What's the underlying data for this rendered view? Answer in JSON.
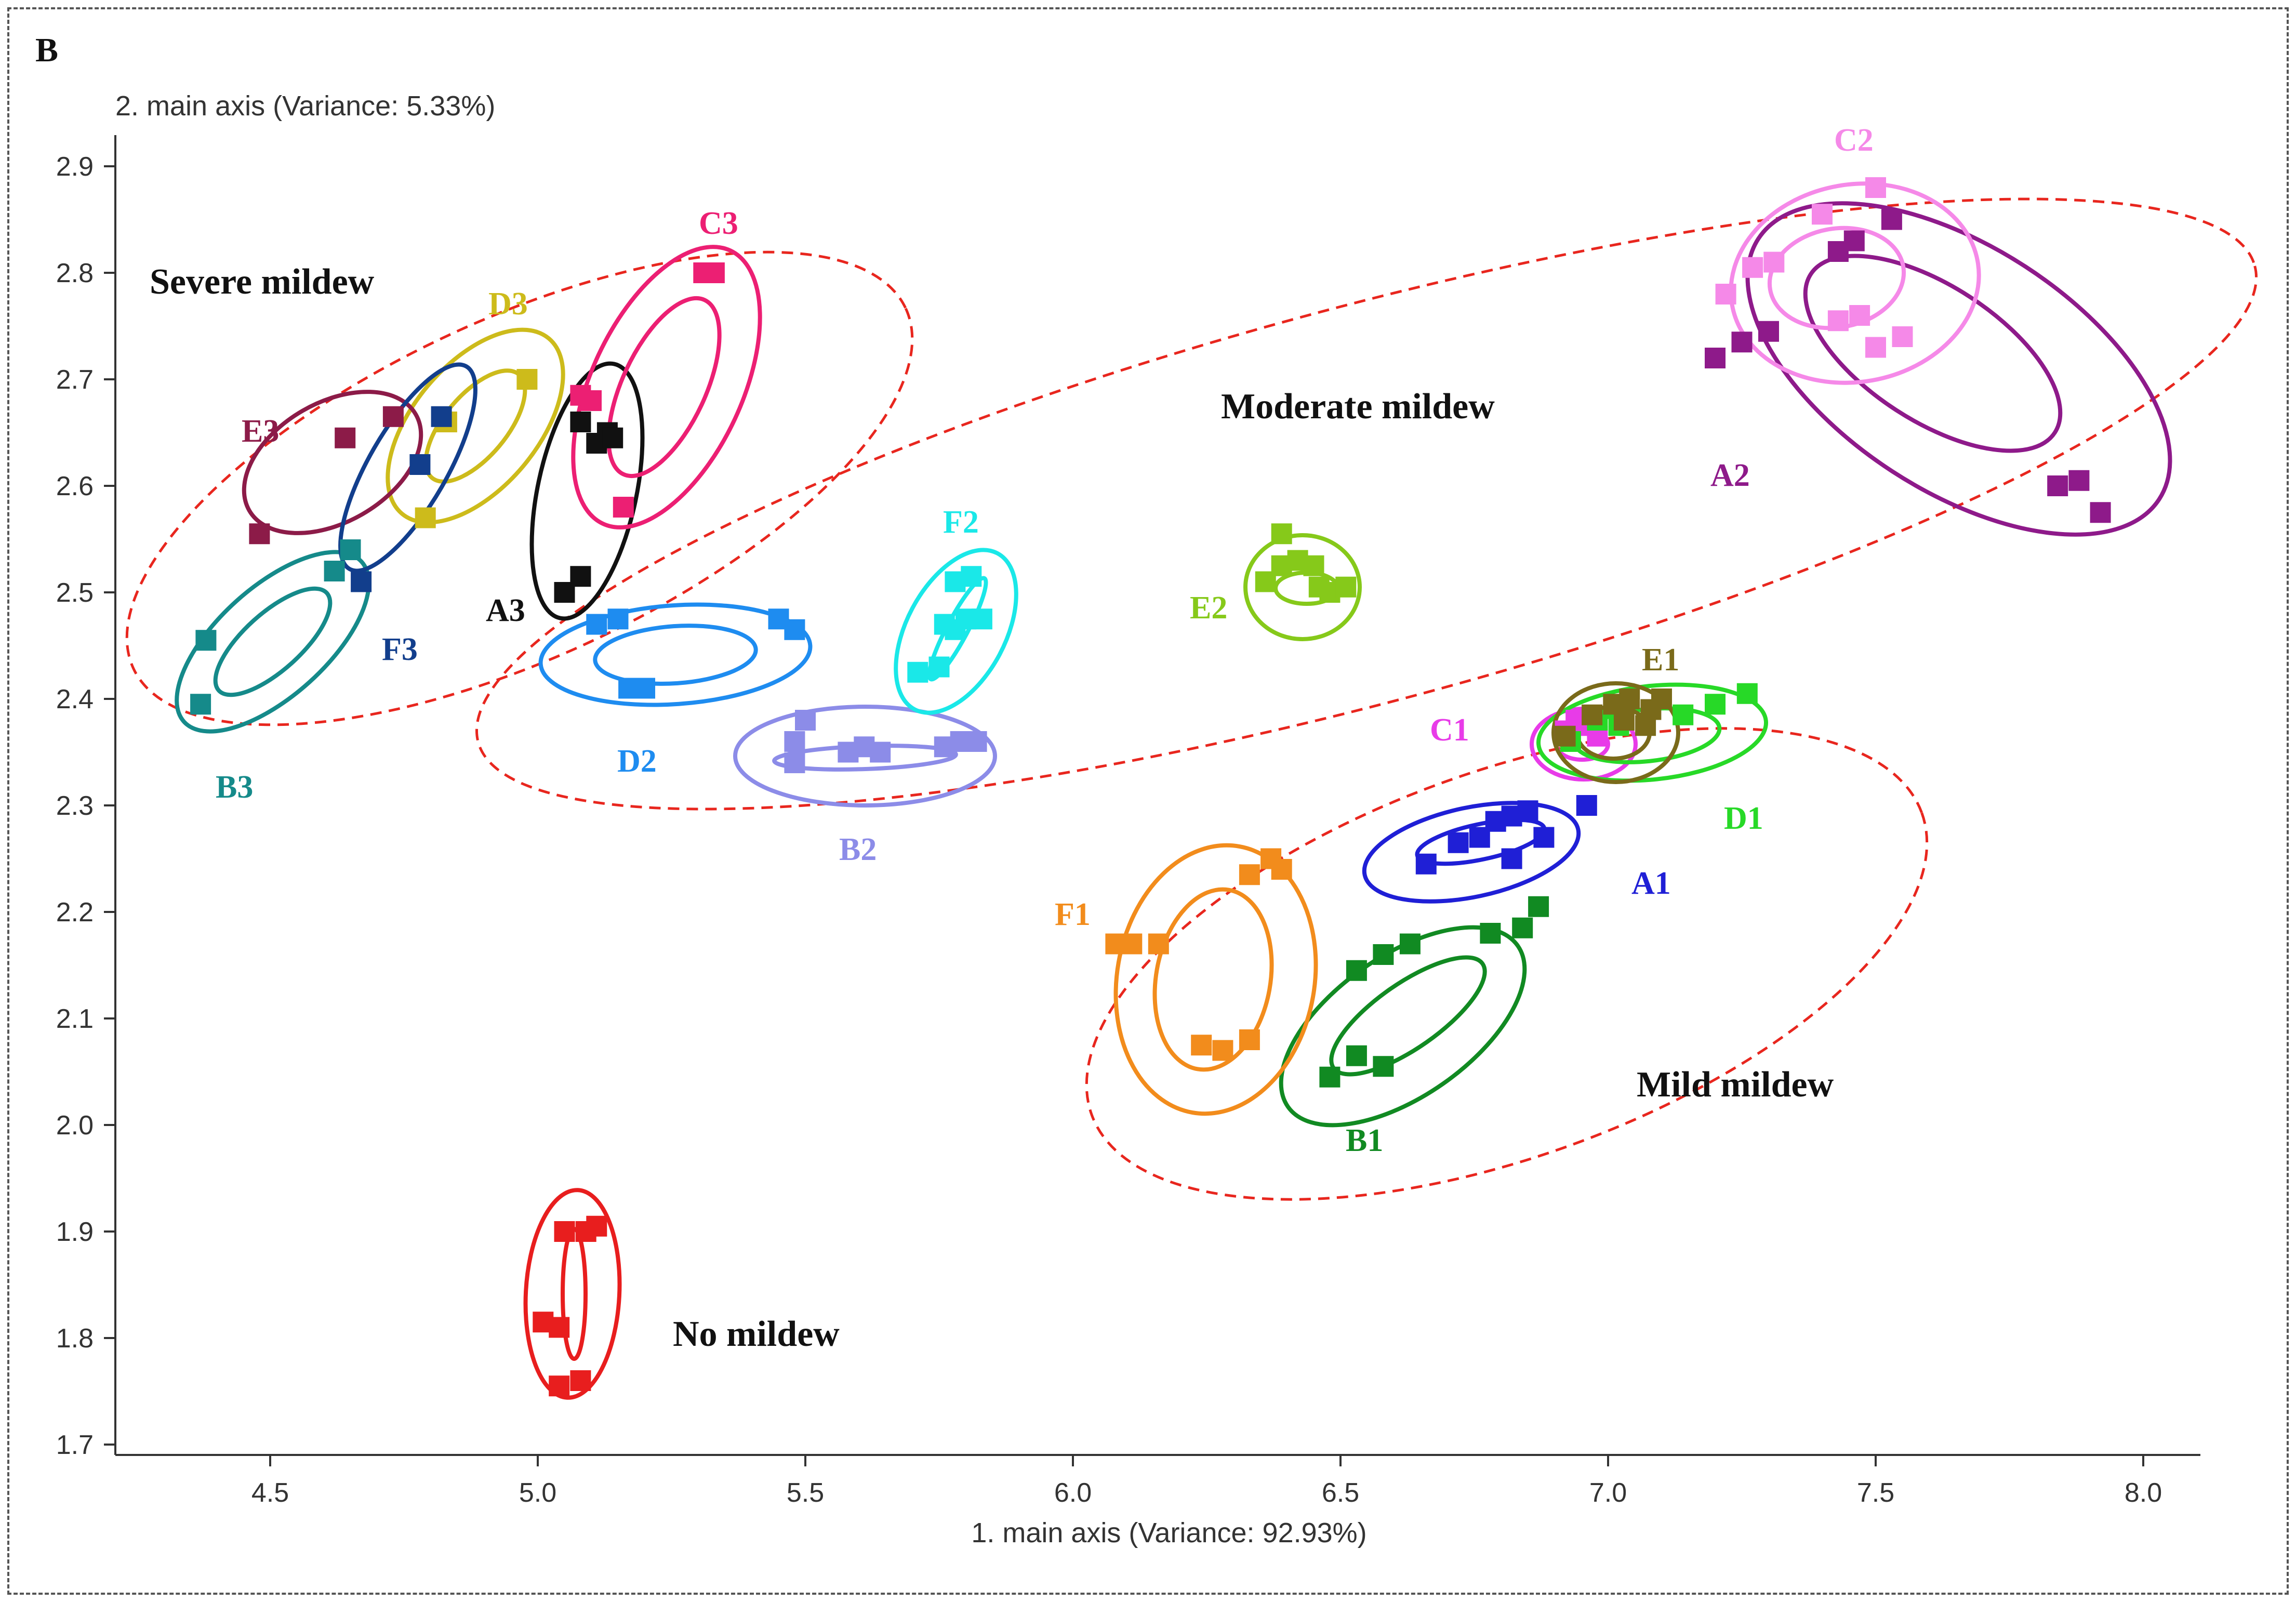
{
  "panel_label": "B",
  "chart_data": {
    "type": "scatter",
    "title": "",
    "xlabel": "1. main axis (Variance: 92.93%)",
    "ylabel": "2. main axis (Variance: 5.33%)",
    "xlim": [
      4.2,
      8.1
    ],
    "ylim": [
      1.69,
      2.96
    ],
    "x_ticks": [
      "4.5",
      "5.0",
      "5.5",
      "6.0",
      "6.5",
      "7.0",
      "7.5",
      "8.0"
    ],
    "y_ticks": [
      "1.7",
      "1.8",
      "1.9",
      "2.0",
      "2.1",
      "2.2",
      "2.3",
      "2.4",
      "2.5",
      "2.6",
      "2.7",
      "2.8",
      "2.9"
    ],
    "regions": [
      {
        "label": "Severe mildew",
        "color": "#e8261e"
      },
      {
        "label": "Moderate mildew",
        "color": "#e8261e"
      },
      {
        "label": "Mild mildew",
        "color": "#e8261e"
      },
      {
        "label": "No mildew",
        "color": "#e8261e"
      }
    ],
    "series": [
      {
        "name": "A1",
        "color": "#1f1fd6",
        "points": [
          [
            6.66,
            2.245
          ],
          [
            6.72,
            2.265
          ],
          [
            6.76,
            2.27
          ],
          [
            6.79,
            2.285
          ],
          [
            6.82,
            2.29
          ],
          [
            6.85,
            2.295
          ],
          [
            6.88,
            2.27
          ],
          [
            6.82,
            2.25
          ],
          [
            6.96,
            2.3
          ]
        ]
      },
      {
        "name": "B1",
        "color": "#118a22",
        "points": [
          [
            6.48,
            2.045
          ],
          [
            6.53,
            2.065
          ],
          [
            6.58,
            2.055
          ],
          [
            6.53,
            2.145
          ],
          [
            6.58,
            2.16
          ],
          [
            6.63,
            2.17
          ],
          [
            6.78,
            2.18
          ],
          [
            6.84,
            2.185
          ],
          [
            6.87,
            2.205
          ]
        ]
      },
      {
        "name": "C1",
        "color": "#e83be8",
        "points": [
          [
            6.92,
            2.37
          ],
          [
            6.95,
            2.375
          ],
          [
            6.98,
            2.365
          ],
          [
            6.94,
            2.38
          ]
        ]
      },
      {
        "name": "D1",
        "color": "#27d927",
        "points": [
          [
            6.93,
            2.36
          ],
          [
            7.02,
            2.375
          ],
          [
            7.14,
            2.385
          ],
          [
            7.2,
            2.395
          ],
          [
            7.26,
            2.405
          ],
          [
            6.98,
            2.38
          ]
        ]
      },
      {
        "name": "E1",
        "color": "#7a6a1a",
        "points": [
          [
            6.92,
            2.365
          ],
          [
            6.97,
            2.385
          ],
          [
            7.01,
            2.395
          ],
          [
            7.04,
            2.4
          ],
          [
            7.08,
            2.39
          ],
          [
            7.1,
            2.4
          ],
          [
            7.03,
            2.38
          ],
          [
            7.07,
            2.375
          ]
        ]
      },
      {
        "name": "F1",
        "color": "#f28c1c",
        "points": [
          [
            6.08,
            2.17
          ],
          [
            6.11,
            2.17
          ],
          [
            6.16,
            2.17
          ],
          [
            6.24,
            2.075
          ],
          [
            6.28,
            2.07
          ],
          [
            6.33,
            2.08
          ],
          [
            6.33,
            2.235
          ],
          [
            6.37,
            2.25
          ],
          [
            6.39,
            2.24
          ]
        ]
      },
      {
        "name": "A2",
        "color": "#8e1a8a",
        "points": [
          [
            7.2,
            2.72
          ],
          [
            7.25,
            2.735
          ],
          [
            7.3,
            2.745
          ],
          [
            7.43,
            2.82
          ],
          [
            7.46,
            2.83
          ],
          [
            7.53,
            2.85
          ],
          [
            7.84,
            2.6
          ],
          [
            7.88,
            2.605
          ],
          [
            7.92,
            2.575
          ]
        ]
      },
      {
        "name": "B2",
        "color": "#8c8ce8",
        "points": [
          [
            5.48,
            2.34
          ],
          [
            5.48,
            2.36
          ],
          [
            5.5,
            2.38
          ],
          [
            5.58,
            2.35
          ],
          [
            5.61,
            2.355
          ],
          [
            5.64,
            2.35
          ],
          [
            5.76,
            2.355
          ],
          [
            5.79,
            2.36
          ],
          [
            5.82,
            2.36
          ]
        ]
      },
      {
        "name": "C2",
        "color": "#f589e8",
        "points": [
          [
            7.22,
            2.78
          ],
          [
            7.27,
            2.805
          ],
          [
            7.31,
            2.81
          ],
          [
            7.4,
            2.855
          ],
          [
            7.43,
            2.755
          ],
          [
            7.47,
            2.76
          ],
          [
            7.5,
            2.73
          ],
          [
            7.55,
            2.74
          ],
          [
            7.5,
            2.88
          ]
        ]
      },
      {
        "name": "D2",
        "color": "#1e8cf0",
        "points": [
          [
            5.11,
            2.47
          ],
          [
            5.15,
            2.475
          ],
          [
            5.17,
            2.41
          ],
          [
            5.2,
            2.41
          ],
          [
            5.45,
            2.475
          ],
          [
            5.48,
            2.465
          ]
        ]
      },
      {
        "name": "E2",
        "color": "#86c91a",
        "points": [
          [
            6.36,
            2.51
          ],
          [
            6.39,
            2.525
          ],
          [
            6.42,
            2.53
          ],
          [
            6.45,
            2.525
          ],
          [
            6.48,
            2.5
          ],
          [
            6.51,
            2.505
          ],
          [
            6.39,
            2.555
          ],
          [
            6.46,
            2.505
          ]
        ]
      },
      {
        "name": "F2",
        "color": "#1ae8e8",
        "points": [
          [
            5.71,
            2.425
          ],
          [
            5.75,
            2.43
          ],
          [
            5.78,
            2.465
          ],
          [
            5.8,
            2.475
          ],
          [
            5.83,
            2.475
          ],
          [
            5.78,
            2.51
          ],
          [
            5.81,
            2.515
          ],
          [
            5.76,
            2.47
          ]
        ]
      },
      {
        "name": "A3",
        "color": "#111111",
        "points": [
          [
            5.05,
            2.5
          ],
          [
            5.08,
            2.515
          ],
          [
            5.11,
            2.64
          ],
          [
            5.13,
            2.65
          ],
          [
            5.14,
            2.645
          ],
          [
            5.08,
            2.66
          ]
        ]
      },
      {
        "name": "B3",
        "color": "#158a8a",
        "points": [
          [
            4.37,
            2.395
          ],
          [
            4.38,
            2.455
          ],
          [
            4.62,
            2.52
          ],
          [
            4.65,
            2.54
          ]
        ]
      },
      {
        "name": "C3",
        "color": "#ec1f73",
        "points": [
          [
            5.08,
            2.685
          ],
          [
            5.1,
            2.68
          ],
          [
            5.16,
            2.58
          ],
          [
            5.31,
            2.8
          ],
          [
            5.33,
            2.8
          ]
        ]
      },
      {
        "name": "D3",
        "color": "#cdbb1b",
        "points": [
          [
            4.79,
            2.57
          ],
          [
            4.83,
            2.66
          ],
          [
            4.98,
            2.7
          ]
        ]
      },
      {
        "name": "E3",
        "color": "#8c1b48",
        "points": [
          [
            4.48,
            2.555
          ],
          [
            4.64,
            2.645
          ],
          [
            4.73,
            2.665
          ]
        ]
      },
      {
        "name": "F3",
        "color": "#123e8c",
        "points": [
          [
            4.67,
            2.51
          ],
          [
            4.78,
            2.62
          ],
          [
            4.82,
            2.665
          ]
        ]
      },
      {
        "name": "No mildew",
        "color": "#e81e1e",
        "points": [
          [
            5.01,
            1.815
          ],
          [
            5.04,
            1.81
          ],
          [
            5.05,
            1.9
          ],
          [
            5.09,
            1.9
          ],
          [
            5.11,
            1.905
          ],
          [
            5.04,
            1.755
          ],
          [
            5.08,
            1.76
          ]
        ]
      }
    ]
  }
}
